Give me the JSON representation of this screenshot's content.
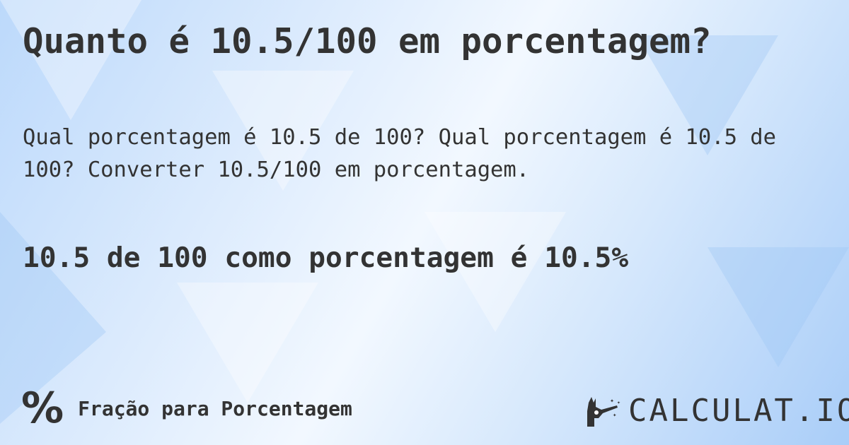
{
  "title": "Quanto é 10.5/100 em porcentagem?",
  "description": "Qual porcentagem é 10.5 de 100? Qual porcentagem é 10.5 de 100? Converter 10.5/100 em porcentagem.",
  "result": "10.5 de 100 como porcentagem é 10.5%",
  "footer": {
    "category_icon": "percent-icon",
    "category_symbol": "%",
    "category_label": "Fração para Porcentagem",
    "logo_text": "CALCULAT.IO",
    "logo_icon": "magic-hand-icon"
  },
  "colors": {
    "text": "#333333",
    "background": "#cfe4fb"
  }
}
